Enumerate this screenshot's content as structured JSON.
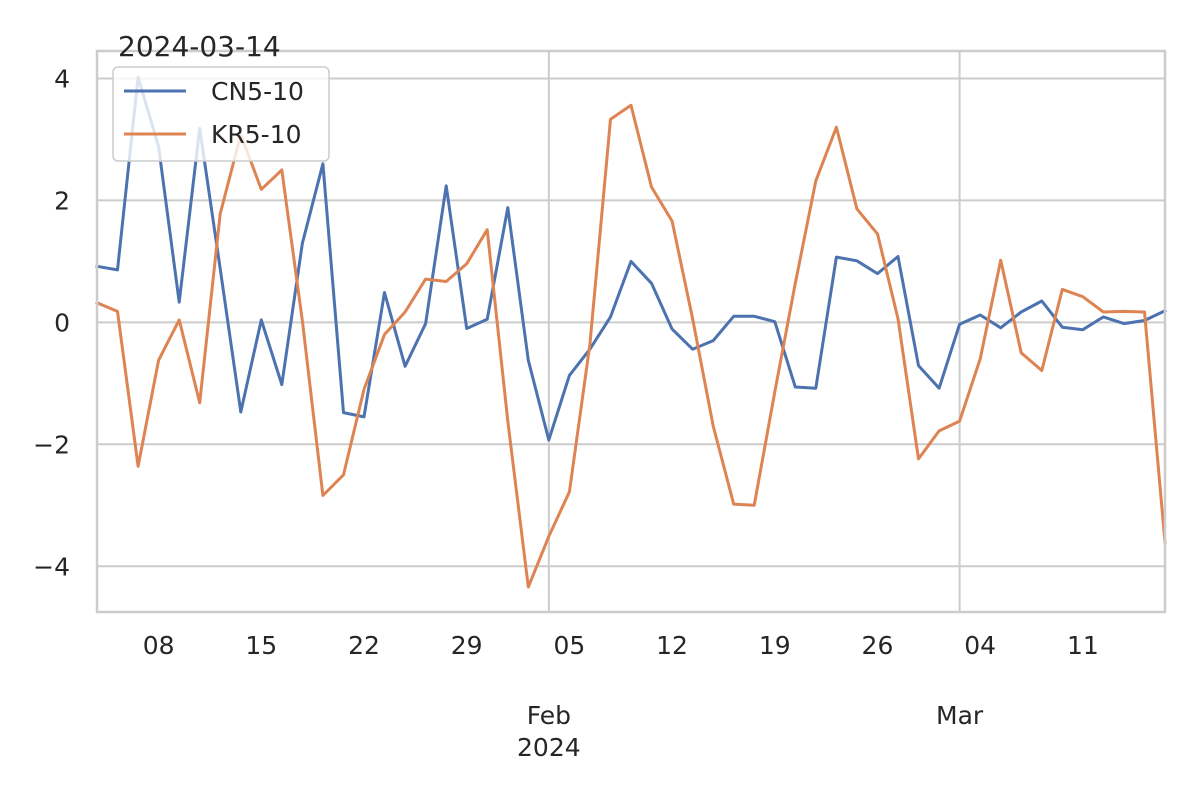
{
  "chart_data": {
    "type": "line",
    "title": "2024-03-14",
    "xlabel": "",
    "ylabel": "",
    "ylim": [
      -4.75,
      4.45
    ],
    "grid": true,
    "legend_position": "top-left",
    "y_ticks": [
      {
        "value": 4,
        "label": "4"
      },
      {
        "value": 2,
        "label": "2"
      },
      {
        "value": 0,
        "label": "0"
      },
      {
        "value": -2,
        "label": "−2"
      },
      {
        "value": -4,
        "label": "−4"
      }
    ],
    "x_tick_labels": [
      {
        "index": 3,
        "label": "08"
      },
      {
        "index": 8,
        "label": "15"
      },
      {
        "index": 13,
        "label": "22"
      },
      {
        "index": 18,
        "label": "29"
      },
      {
        "index": 23,
        "label": "05"
      },
      {
        "index": 28,
        "label": "12"
      },
      {
        "index": 33,
        "label": "19"
      },
      {
        "index": 38,
        "label": "26"
      },
      {
        "index": 43,
        "label": "04"
      },
      {
        "index": 48,
        "label": "11"
      }
    ],
    "x_major_ticks": [
      {
        "index": 22,
        "label": "Feb\n2024"
      },
      {
        "index": 42,
        "label": "Mar"
      }
    ],
    "series": [
      {
        "name": "CN5-10",
        "color": "#4c72b0",
        "values": [
          0.92,
          0.86,
          4.02,
          2.88,
          0.33,
          3.18,
          0.88,
          -1.47,
          0.04,
          -1.02,
          1.3,
          2.6,
          -1.48,
          -1.55,
          0.49,
          -0.72,
          -0.02,
          2.24,
          -0.1,
          0.05,
          1.88,
          -0.62,
          -1.93,
          -0.87,
          -0.44,
          0.09,
          1.0,
          0.64,
          -0.11,
          -0.44,
          -0.3,
          0.1,
          0.1,
          0.01,
          -1.06,
          -1.08,
          1.07,
          1.01,
          0.8,
          1.08,
          -0.71,
          -1.08,
          -0.03,
          0.12,
          -0.09,
          0.17,
          0.35,
          -0.08,
          -0.12,
          0.09,
          -0.02,
          0.03,
          0.19
        ]
      },
      {
        "name": "KR5-10",
        "color": "#dd8452",
        "values": [
          0.32,
          0.18,
          -2.36,
          -0.62,
          0.04,
          -1.32,
          1.78,
          3.08,
          2.18,
          2.5,
          0.02,
          -2.84,
          -2.5,
          -1.1,
          -0.2,
          0.17,
          0.71,
          0.67,
          0.96,
          1.52,
          -1.62,
          -4.34,
          -3.51,
          -2.78,
          -0.36,
          3.33,
          3.56,
          2.22,
          1.66,
          0.06,
          -1.7,
          -2.98,
          -3.0,
          -1.14,
          0.64,
          2.32,
          3.2,
          1.86,
          1.45,
          0.06,
          -2.24,
          -1.78,
          -1.62,
          -0.6,
          1.02,
          -0.5,
          -0.79,
          0.54,
          0.42,
          0.17,
          0.18,
          0.17,
          -3.61
        ]
      }
    ]
  }
}
